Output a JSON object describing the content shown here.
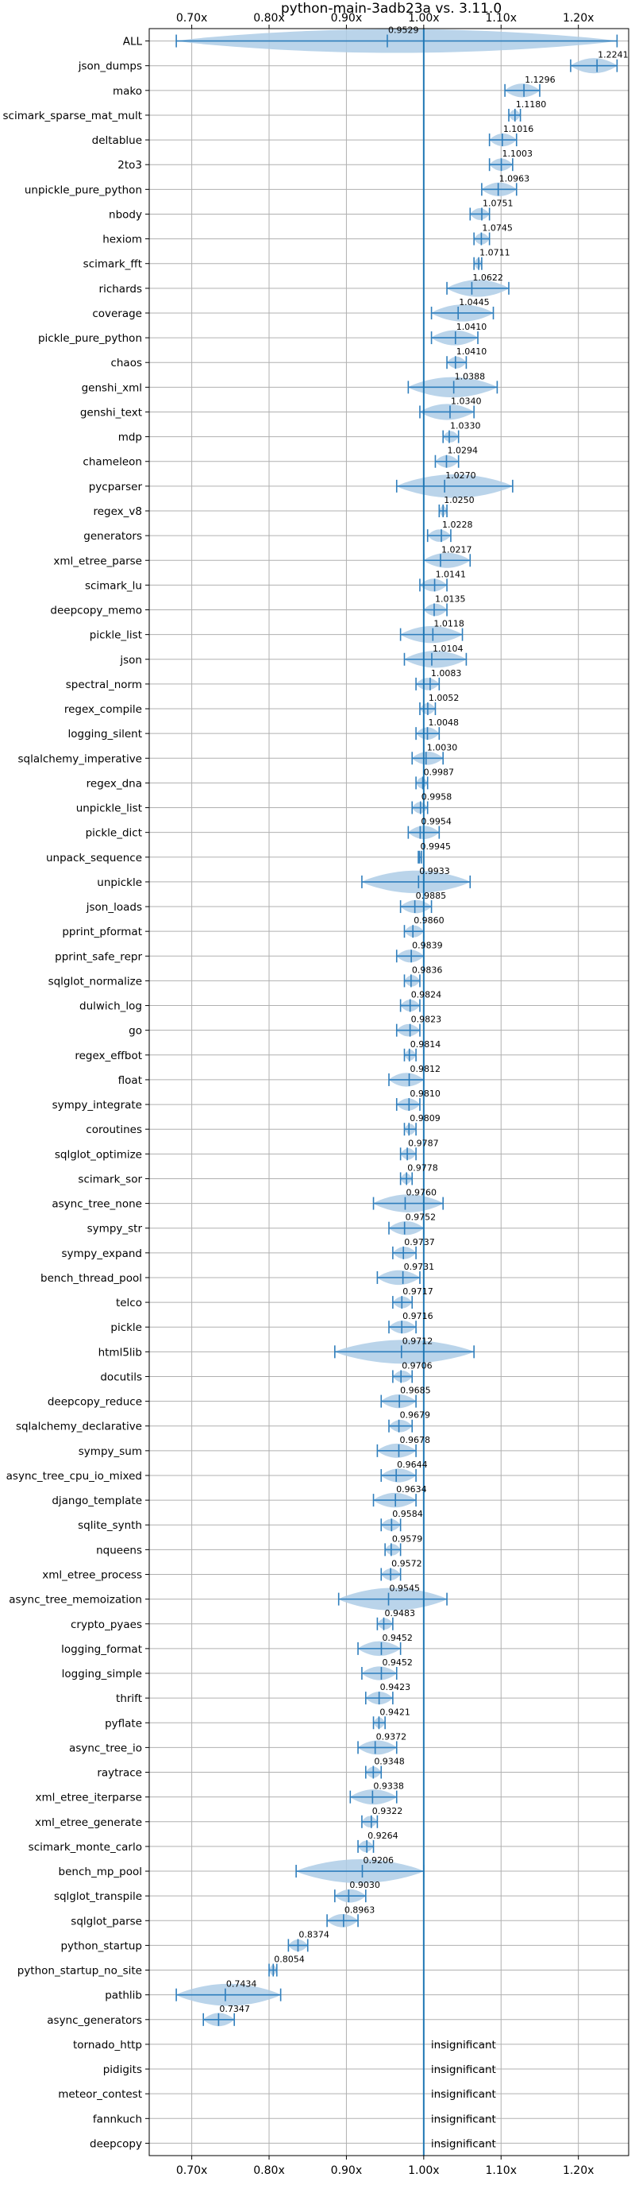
{
  "chart_data": {
    "type": "violin",
    "title": "python-main-3adb23a vs. 3.11.0",
    "xlim": [
      0.645,
      1.265
    ],
    "xticks": [
      0.7,
      0.8,
      0.9,
      1.0,
      1.1,
      1.2
    ],
    "xtick_labels": [
      "0.70x",
      "0.80x",
      "0.90x",
      "1.00x",
      "1.10x",
      "1.20x"
    ],
    "baseline": 1.0,
    "grid": true,
    "colors": {
      "violin": "#aecde6",
      "line": "#2f7ebc",
      "baseline": "#1f77b4",
      "grid": "#b0b0b0"
    },
    "categories": [
      {
        "name": "ALL",
        "median": 0.9529,
        "min": 0.68,
        "max": 1.25,
        "label": "0.9529"
      },
      {
        "name": "json_dumps",
        "median": 1.2241,
        "min": 1.19,
        "max": 1.25,
        "label": "1.2241"
      },
      {
        "name": "mako",
        "median": 1.1296,
        "min": 1.105,
        "max": 1.15,
        "label": "1.1296"
      },
      {
        "name": "scimark_sparse_mat_mult",
        "median": 1.118,
        "min": 1.11,
        "max": 1.125,
        "label": "1.1180"
      },
      {
        "name": "deltablue",
        "median": 1.1016,
        "min": 1.085,
        "max": 1.12,
        "label": "1.1016"
      },
      {
        "name": "2to3",
        "median": 1.1003,
        "min": 1.085,
        "max": 1.115,
        "label": "1.1003"
      },
      {
        "name": "unpickle_pure_python",
        "median": 1.0963,
        "min": 1.075,
        "max": 1.12,
        "label": "1.0963"
      },
      {
        "name": "nbody",
        "median": 1.0751,
        "min": 1.06,
        "max": 1.085,
        "label": "1.0751"
      },
      {
        "name": "hexiom",
        "median": 1.0745,
        "min": 1.065,
        "max": 1.085,
        "label": "1.0745"
      },
      {
        "name": "scimark_fft",
        "median": 1.0711,
        "min": 1.065,
        "max": 1.075,
        "label": "1.0711"
      },
      {
        "name": "richards",
        "median": 1.0622,
        "min": 1.03,
        "max": 1.11,
        "label": "1.0622"
      },
      {
        "name": "coverage",
        "median": 1.0445,
        "min": 1.01,
        "max": 1.09,
        "label": "1.0445"
      },
      {
        "name": "pickle_pure_python",
        "median": 1.041,
        "min": 1.01,
        "max": 1.07,
        "label": "1.0410"
      },
      {
        "name": "chaos",
        "median": 1.041,
        "min": 1.03,
        "max": 1.055,
        "label": "1.0410"
      },
      {
        "name": "genshi_xml",
        "median": 1.0388,
        "min": 0.98,
        "max": 1.095,
        "label": "1.0388"
      },
      {
        "name": "genshi_text",
        "median": 1.034,
        "min": 0.995,
        "max": 1.065,
        "label": "1.0340"
      },
      {
        "name": "mdp",
        "median": 1.033,
        "min": 1.025,
        "max": 1.045,
        "label": "1.0330"
      },
      {
        "name": "chameleon",
        "median": 1.0294,
        "min": 1.015,
        "max": 1.045,
        "label": "1.0294"
      },
      {
        "name": "pycparser",
        "median": 1.027,
        "min": 0.965,
        "max": 1.115,
        "label": "1.0270"
      },
      {
        "name": "regex_v8",
        "median": 1.025,
        "min": 1.02,
        "max": 1.03,
        "label": "1.0250"
      },
      {
        "name": "generators",
        "median": 1.0228,
        "min": 1.005,
        "max": 1.035,
        "label": "1.0228"
      },
      {
        "name": "xml_etree_parse",
        "median": 1.0217,
        "min": 1.0,
        "max": 1.06,
        "label": "1.0217"
      },
      {
        "name": "scimark_lu",
        "median": 1.0141,
        "min": 0.995,
        "max": 1.03,
        "label": "1.0141"
      },
      {
        "name": "deepcopy_memo",
        "median": 1.0135,
        "min": 1.0,
        "max": 1.03,
        "label": "1.0135"
      },
      {
        "name": "pickle_list",
        "median": 1.0118,
        "min": 0.97,
        "max": 1.05,
        "label": "1.0118"
      },
      {
        "name": "json",
        "median": 1.0104,
        "min": 0.975,
        "max": 1.055,
        "label": "1.0104"
      },
      {
        "name": "spectral_norm",
        "median": 1.0083,
        "min": 0.99,
        "max": 1.02,
        "label": "1.0083"
      },
      {
        "name": "regex_compile",
        "median": 1.0052,
        "min": 0.995,
        "max": 1.015,
        "label": "1.0052"
      },
      {
        "name": "logging_silent",
        "median": 1.0048,
        "min": 0.99,
        "max": 1.02,
        "label": "1.0048"
      },
      {
        "name": "sqlalchemy_imperative",
        "median": 1.003,
        "min": 0.985,
        "max": 1.025,
        "label": "1.0030"
      },
      {
        "name": "regex_dna",
        "median": 0.9987,
        "min": 0.99,
        "max": 1.005,
        "label": "0.9987"
      },
      {
        "name": "unpickle_list",
        "median": 0.9958,
        "min": 0.985,
        "max": 1.005,
        "label": "0.9958"
      },
      {
        "name": "pickle_dict",
        "median": 0.9954,
        "min": 0.98,
        "max": 1.02,
        "label": "0.9954"
      },
      {
        "name": "unpack_sequence",
        "median": 0.9945,
        "min": 0.993,
        "max": 0.997,
        "label": "0.9945"
      },
      {
        "name": "unpickle",
        "median": 0.9933,
        "min": 0.92,
        "max": 1.06,
        "label": "0.9933"
      },
      {
        "name": "json_loads",
        "median": 0.9885,
        "min": 0.97,
        "max": 1.01,
        "label": "0.9885"
      },
      {
        "name": "pprint_pformat",
        "median": 0.986,
        "min": 0.975,
        "max": 1.0,
        "label": "0.9860"
      },
      {
        "name": "pprint_safe_repr",
        "median": 0.9839,
        "min": 0.965,
        "max": 1.0,
        "label": "0.9839"
      },
      {
        "name": "sqlglot_normalize",
        "median": 0.9836,
        "min": 0.975,
        "max": 0.995,
        "label": "0.9836"
      },
      {
        "name": "dulwich_log",
        "median": 0.9824,
        "min": 0.97,
        "max": 0.995,
        "label": "0.9824"
      },
      {
        "name": "go",
        "median": 0.9823,
        "min": 0.965,
        "max": 0.995,
        "label": "0.9823"
      },
      {
        "name": "regex_effbot",
        "median": 0.9814,
        "min": 0.975,
        "max": 0.99,
        "label": "0.9814"
      },
      {
        "name": "float",
        "median": 0.9812,
        "min": 0.955,
        "max": 1.0,
        "label": "0.9812"
      },
      {
        "name": "sympy_integrate",
        "median": 0.981,
        "min": 0.965,
        "max": 0.995,
        "label": "0.9810"
      },
      {
        "name": "coroutines",
        "median": 0.9809,
        "min": 0.975,
        "max": 0.99,
        "label": "0.9809"
      },
      {
        "name": "sqlglot_optimize",
        "median": 0.9787,
        "min": 0.97,
        "max": 0.99,
        "label": "0.9787"
      },
      {
        "name": "scimark_sor",
        "median": 0.9778,
        "min": 0.97,
        "max": 0.985,
        "label": "0.9778"
      },
      {
        "name": "async_tree_none",
        "median": 0.976,
        "min": 0.935,
        "max": 1.025,
        "label": "0.9760"
      },
      {
        "name": "sympy_str",
        "median": 0.9752,
        "min": 0.955,
        "max": 1.0,
        "label": "0.9752"
      },
      {
        "name": "sympy_expand",
        "median": 0.9737,
        "min": 0.96,
        "max": 0.99,
        "label": "0.9737"
      },
      {
        "name": "bench_thread_pool",
        "median": 0.9731,
        "min": 0.94,
        "max": 0.995,
        "label": "0.9731"
      },
      {
        "name": "telco",
        "median": 0.9717,
        "min": 0.96,
        "max": 0.985,
        "label": "0.9717"
      },
      {
        "name": "pickle",
        "median": 0.9716,
        "min": 0.955,
        "max": 0.99,
        "label": "0.9716"
      },
      {
        "name": "html5lib",
        "median": 0.9712,
        "min": 0.885,
        "max": 1.065,
        "label": "0.9712"
      },
      {
        "name": "docutils",
        "median": 0.9706,
        "min": 0.96,
        "max": 0.985,
        "label": "0.9706"
      },
      {
        "name": "deepcopy_reduce",
        "median": 0.9685,
        "min": 0.945,
        "max": 0.99,
        "label": "0.9685"
      },
      {
        "name": "sqlalchemy_declarative",
        "median": 0.9679,
        "min": 0.955,
        "max": 0.985,
        "label": "0.9679"
      },
      {
        "name": "sympy_sum",
        "median": 0.9678,
        "min": 0.94,
        "max": 0.99,
        "label": "0.9678"
      },
      {
        "name": "async_tree_cpu_io_mixed",
        "median": 0.9644,
        "min": 0.945,
        "max": 0.99,
        "label": "0.9644"
      },
      {
        "name": "django_template",
        "median": 0.9634,
        "min": 0.935,
        "max": 0.99,
        "label": "0.9634"
      },
      {
        "name": "sqlite_synth",
        "median": 0.9584,
        "min": 0.945,
        "max": 0.97,
        "label": "0.9584"
      },
      {
        "name": "nqueens",
        "median": 0.9579,
        "min": 0.95,
        "max": 0.97,
        "label": "0.9579"
      },
      {
        "name": "xml_etree_process",
        "median": 0.9572,
        "min": 0.945,
        "max": 0.97,
        "label": "0.9572"
      },
      {
        "name": "async_tree_memoization",
        "median": 0.9545,
        "min": 0.89,
        "max": 1.03,
        "label": "0.9545"
      },
      {
        "name": "crypto_pyaes",
        "median": 0.9483,
        "min": 0.94,
        "max": 0.96,
        "label": "0.9483"
      },
      {
        "name": "logging_format",
        "median": 0.9452,
        "min": 0.915,
        "max": 0.97,
        "label": "0.9452"
      },
      {
        "name": "logging_simple",
        "median": 0.9452,
        "min": 0.92,
        "max": 0.965,
        "label": "0.9452"
      },
      {
        "name": "thrift",
        "median": 0.9423,
        "min": 0.925,
        "max": 0.96,
        "label": "0.9423"
      },
      {
        "name": "pyflate",
        "median": 0.9421,
        "min": 0.935,
        "max": 0.95,
        "label": "0.9421"
      },
      {
        "name": "async_tree_io",
        "median": 0.9372,
        "min": 0.915,
        "max": 0.965,
        "label": "0.9372"
      },
      {
        "name": "raytrace",
        "median": 0.9348,
        "min": 0.925,
        "max": 0.945,
        "label": "0.9348"
      },
      {
        "name": "xml_etree_iterparse",
        "median": 0.9338,
        "min": 0.905,
        "max": 0.965,
        "label": "0.9338"
      },
      {
        "name": "xml_etree_generate",
        "median": 0.9322,
        "min": 0.92,
        "max": 0.94,
        "label": "0.9322"
      },
      {
        "name": "scimark_monte_carlo",
        "median": 0.9264,
        "min": 0.915,
        "max": 0.935,
        "label": "0.9264"
      },
      {
        "name": "bench_mp_pool",
        "median": 0.9206,
        "min": 0.835,
        "max": 1.0,
        "label": "0.9206"
      },
      {
        "name": "sqlglot_transpile",
        "median": 0.903,
        "min": 0.885,
        "max": 0.925,
        "label": "0.9030"
      },
      {
        "name": "sqlglot_parse",
        "median": 0.8963,
        "min": 0.875,
        "max": 0.915,
        "label": "0.8963"
      },
      {
        "name": "python_startup",
        "median": 0.8374,
        "min": 0.825,
        "max": 0.85,
        "label": "0.8374"
      },
      {
        "name": "python_startup_no_site",
        "median": 0.8054,
        "min": 0.8,
        "max": 0.81,
        "label": "0.8054"
      },
      {
        "name": "pathlib",
        "median": 0.7434,
        "min": 0.68,
        "max": 0.815,
        "label": "0.7434"
      },
      {
        "name": "async_generators",
        "median": 0.7347,
        "min": 0.715,
        "max": 0.755,
        "label": "0.7347"
      },
      {
        "name": "tornado_http",
        "insignificant": true,
        "label": "insignificant"
      },
      {
        "name": "pidigits",
        "insignificant": true,
        "label": "insignificant"
      },
      {
        "name": "meteor_contest",
        "insignificant": true,
        "label": "insignificant"
      },
      {
        "name": "fannkuch",
        "insignificant": true,
        "label": "insignificant"
      },
      {
        "name": "deepcopy",
        "insignificant": true,
        "label": "insignificant"
      }
    ]
  }
}
